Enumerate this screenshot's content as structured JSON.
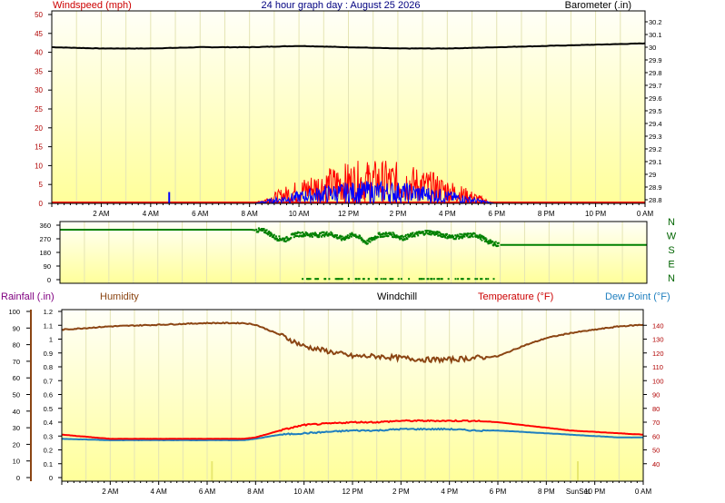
{
  "chart_data": [
    {
      "id": "wind",
      "type": "line",
      "title": "24 hour graph day : August 25 2026",
      "left_axis_label": "Windspeed (mph)",
      "right_axis_label": "Barometer (.in)",
      "x_ticks": [
        "2 AM",
        "4 AM",
        "6 AM",
        "8 AM",
        "10 AM",
        "12 PM",
        "2 PM",
        "4 PM",
        "6 PM",
        "8 PM",
        "10 PM",
        "0 AM"
      ],
      "y_left": {
        "min": 0,
        "max": 50,
        "ticks": [
          "0",
          "5",
          "10",
          "15",
          "20",
          "25",
          "30",
          "35",
          "40",
          "45",
          "50"
        ]
      },
      "y_right": {
        "min": 28.8,
        "max": 30.2,
        "ticks": [
          "28.8",
          "28.9",
          "29",
          "29.1",
          "29.2",
          "29.3",
          "29.4",
          "29.5",
          "29.6",
          "29.7",
          "29.8",
          "29.9",
          "30",
          "30.1",
          "30.2"
        ]
      },
      "barometer": {
        "color": "#000000",
        "x": [
          0,
          2,
          4,
          6,
          8,
          10,
          12,
          14,
          16,
          18,
          20,
          22,
          24
        ],
        "y": [
          30.0,
          29.99,
          29.99,
          30.0,
          30.0,
          30.01,
          30.0,
          29.99,
          29.99,
          30.0,
          30.01,
          30.02,
          30.03
        ]
      },
      "windspeed": {
        "color": "#ff0000",
        "active_from": 8.2,
        "active_to": 17.9,
        "peak": 11
      },
      "windgust": {
        "color": "#0000ff",
        "active_from": 8.2,
        "active_to": 17.9,
        "peak": 6
      }
    },
    {
      "id": "direction",
      "type": "scatter",
      "y_ticks": [
        "360",
        "270",
        "180",
        "90",
        "0"
      ],
      "compass_labels": [
        "N",
        "W",
        "S",
        "E",
        "N"
      ],
      "color": "#008000",
      "series": {
        "x": [
          0,
          7.8,
          8.4,
          8.8,
          9.2,
          9.6,
          10,
          10.5,
          11,
          11.5,
          12,
          12.5,
          13,
          13.5,
          14,
          14.5,
          15,
          15.5,
          16,
          16.5,
          17,
          17.5,
          17.9,
          24
        ],
        "y": [
          330,
          330,
          320,
          275,
          265,
          300,
          300,
          295,
          305,
          270,
          300,
          245,
          295,
          300,
          275,
          300,
          315,
          300,
          280,
          290,
          295,
          250,
          230,
          230
        ]
      }
    },
    {
      "id": "temp",
      "type": "line",
      "labels": {
        "rainfall": "Rainfall (.in)",
        "humidity": "Humidity",
        "windchill": "Windchill",
        "temperature": "Temperature (°F)",
        "dewpoint": "Dew Point (°F)"
      },
      "x_ticks": [
        "2 AM",
        "4 AM",
        "6 AM",
        "8 AM",
        "10 AM",
        "12 PM",
        "2 PM",
        "4 PM",
        "6 PM",
        "8 PM",
        "10 PM",
        "0 AM"
      ],
      "sunrise_sunset_label": "SunSet",
      "y_humidity": {
        "min": 0,
        "max": 100,
        "ticks": [
          "0",
          "10",
          "20",
          "30",
          "40",
          "50",
          "60",
          "70",
          "80",
          "90",
          "100"
        ]
      },
      "y_rain": {
        "min": 0,
        "max": 1.2,
        "ticks": [
          "0",
          "0.1",
          "0.2",
          "0.3",
          "0.4",
          "0.5",
          "0.6",
          "0.7",
          "0.8",
          "0.9",
          "1",
          "1.1",
          "1.2"
        ]
      },
      "y_temp": {
        "min": 30,
        "max": 150,
        "ticks": [
          "40",
          "50",
          "60",
          "70",
          "80",
          "90",
          "100",
          "110",
          "120",
          "130",
          "140"
        ]
      },
      "humidity": {
        "color": "#8b4513",
        "x": [
          0,
          2,
          4,
          6,
          7.5,
          8,
          9,
          10,
          11,
          12,
          13,
          14,
          15,
          16,
          17,
          18,
          19,
          20,
          21,
          22,
          23,
          24
        ],
        "y": [
          89,
          91,
          92,
          93,
          93,
          92,
          86,
          79,
          76,
          73,
          73,
          72,
          71,
          71,
          72,
          73,
          79,
          84,
          87,
          89,
          91,
          92
        ]
      },
      "temperature": {
        "color": "#ff0000",
        "x": [
          0,
          2,
          4,
          6,
          7.5,
          8,
          9,
          10,
          11,
          12,
          13,
          14,
          15,
          16,
          17,
          18,
          19,
          20,
          21,
          22,
          23,
          24
        ],
        "y": [
          61,
          58,
          58,
          58,
          58,
          59,
          64,
          68,
          69,
          70,
          70,
          71,
          71,
          71,
          71,
          70,
          68,
          66,
          64,
          63,
          62,
          61
        ]
      },
      "dewpoint": {
        "color": "#1f7fbf",
        "x": [
          0,
          2,
          4,
          6,
          7.5,
          8,
          9,
          10,
          11,
          12,
          13,
          14,
          15,
          16,
          17,
          18,
          19,
          20,
          21,
          22,
          23,
          24
        ],
        "y": [
          58,
          57,
          57,
          57,
          57,
          58,
          61,
          62,
          63,
          64,
          64,
          65,
          65,
          65,
          64,
          64,
          63,
          62,
          61,
          60,
          59,
          59
        ]
      }
    }
  ]
}
